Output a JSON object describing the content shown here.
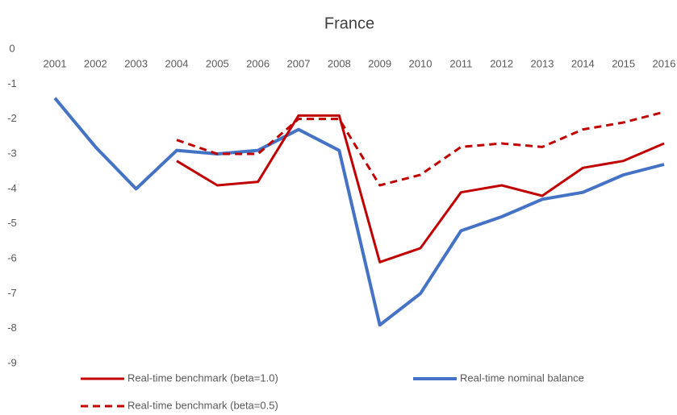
{
  "chart_data": {
    "type": "line",
    "title": "France",
    "categories": [
      "2001",
      "2002",
      "2003",
      "2004",
      "2005",
      "2006",
      "2007",
      "2008",
      "2009",
      "2010",
      "2011",
      "2012",
      "2013",
      "2014",
      "2015",
      "2016"
    ],
    "ylim": [
      -9,
      0
    ],
    "yticks": [
      0,
      -1,
      -2,
      -3,
      -4,
      -5,
      -6,
      -7,
      -8,
      -9
    ],
    "grid": false,
    "legend": "bottom",
    "series": [
      {
        "name": "Real-time benchmark (beta=1.0)",
        "color": "#c00000",
        "style": "solid",
        "values": [
          null,
          null,
          null,
          -3.2,
          -3.9,
          -3.8,
          -1.9,
          -1.9,
          -6.1,
          -5.7,
          -4.1,
          -3.9,
          -4.2,
          -3.4,
          -3.2,
          -2.7
        ]
      },
      {
        "name": "Real-time nominal balance",
        "color": "#4472c4",
        "style": "solid",
        "values": [
          -1.4,
          -2.8,
          -4.0,
          -2.9,
          -3.0,
          -2.9,
          -2.3,
          -2.9,
          -7.9,
          -7.0,
          -5.2,
          -4.8,
          -4.3,
          -4.1,
          -3.6,
          -3.3
        ]
      },
      {
        "name": "Real-time benchmark (beta=0.5)",
        "color": "#c00000",
        "style": "dashed",
        "values": [
          null,
          null,
          null,
          -2.6,
          -3.0,
          -3.0,
          -2.0,
          -2.0,
          -3.9,
          -3.6,
          -2.8,
          -2.7,
          -2.8,
          -2.3,
          -2.1,
          -1.8
        ]
      }
    ]
  }
}
